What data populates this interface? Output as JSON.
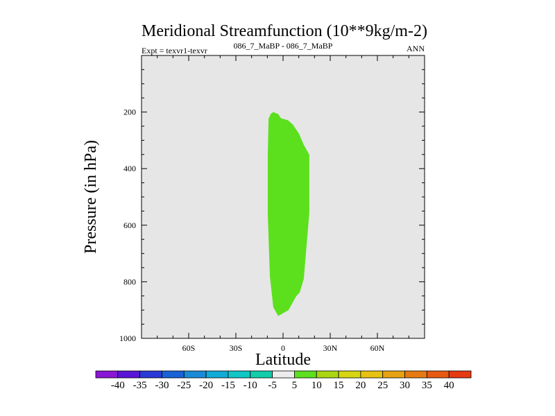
{
  "chart_data": {
    "type": "contour",
    "title": "Meridional Streamfunction (10**9kg/m-2)",
    "left_label": "Expt = texvr1-texvr",
    "center_label": "086_7_MaBP - 086_7_MaBP",
    "right_label": "ANN",
    "xlabel": "Latitude",
    "ylabel": "Pressure (in hPa)",
    "xlim": [
      -90,
      90
    ],
    "ylim": [
      1000,
      0
    ],
    "xticks": [
      {
        "value": -60,
        "label": "60S"
      },
      {
        "value": -30,
        "label": "30S"
      },
      {
        "value": 0,
        "label": "0"
      },
      {
        "value": 30,
        "label": "30N"
      },
      {
        "value": 60,
        "label": "60N"
      }
    ],
    "yticks": [
      {
        "value": 200,
        "label": "200"
      },
      {
        "value": 400,
        "label": "400"
      },
      {
        "value": 600,
        "label": "600"
      },
      {
        "value": 800,
        "label": "800"
      },
      {
        "value": 1000,
        "label": "1000"
      }
    ],
    "background_color": "#e6e6e6",
    "region": {
      "range": "5 to 10",
      "color": "#5ce01e",
      "outline_lat_pressure": [
        [
          -7.9,
          207
        ],
        [
          -6.2,
          200
        ],
        [
          -3.1,
          207
        ],
        [
          -1.3,
          222
        ],
        [
          3.1,
          229
        ],
        [
          6.2,
          244
        ],
        [
          10.1,
          276
        ],
        [
          13.2,
          316
        ],
        [
          16.7,
          351
        ],
        [
          16.7,
          555
        ],
        [
          13.2,
          790
        ],
        [
          10.6,
          838
        ],
        [
          8.4,
          851
        ],
        [
          3.5,
          900
        ],
        [
          -3.1,
          921
        ],
        [
          -6.2,
          890
        ],
        [
          -8.4,
          780
        ],
        [
          -9.7,
          563
        ],
        [
          -9.7,
          348
        ],
        [
          -9.2,
          224
        ]
      ]
    },
    "colorbar": {
      "labels": [
        "-40",
        "-35",
        "-30",
        "-25",
        "-20",
        "-15",
        "-10",
        "-5",
        "5",
        "10",
        "15",
        "20",
        "25",
        "30",
        "35",
        "40"
      ],
      "colors": [
        "#8a16d6",
        "#5a16d6",
        "#2a3ad6",
        "#1a62d6",
        "#1a8ad6",
        "#12aad6",
        "#12c6c6",
        "#12ccaa",
        "#ececec",
        "#5ce01e",
        "#aad612",
        "#d6d612",
        "#e6c212",
        "#e6a212",
        "#e67a12",
        "#e65a12",
        "#e63a12"
      ]
    }
  }
}
